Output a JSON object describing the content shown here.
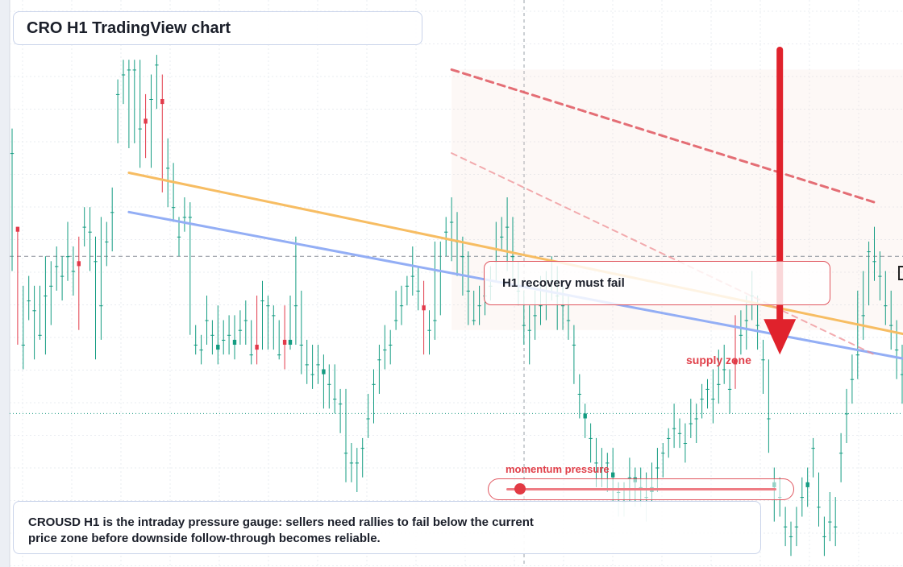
{
  "title": "CRO H1 TradingView chart",
  "callout": "H1 recovery must fail",
  "zone_label": "supply zone",
  "momentum": {
    "label": "momentum pressure",
    "level": 0.05
  },
  "caption": "CROUSD H1 is the intraday pressure gauge: sellers need rallies to fail below the current price zone before downside follow-through becomes reliable.",
  "colors": {
    "up": "#149c82",
    "down": "#e23a4a",
    "trend_orange": "#f7bd63",
    "trend_blue": "#93aef5",
    "resistance": "#e0565f",
    "arrow": "#e0222c"
  },
  "chart_data": {
    "type": "candlestick",
    "symbol": "CROUSD",
    "timeframe": "H1",
    "price_scale": "no printed axis; values are relative units (higher = higher price)",
    "ylim": [
      0,
      100
    ],
    "candles": [
      [
        79,
        79,
        84,
        55
      ],
      [
        64,
        63,
        64,
        40
      ],
      [
        40,
        40,
        52,
        35
      ],
      [
        49,
        49,
        54,
        45
      ],
      [
        47,
        47,
        52,
        37
      ],
      [
        42,
        42,
        52,
        41
      ],
      [
        50,
        50,
        58,
        38
      ],
      [
        52,
        52,
        57,
        44
      ],
      [
        56,
        56,
        60,
        51
      ],
      [
        54,
        54,
        58,
        49
      ],
      [
        58,
        58,
        65,
        53
      ],
      [
        55,
        55,
        60,
        50
      ],
      [
        57,
        56,
        62,
        43
      ],
      [
        64,
        64,
        68,
        60
      ],
      [
        63,
        63,
        68,
        55
      ],
      [
        57,
        57,
        62,
        37
      ],
      [
        48,
        48,
        66,
        41
      ],
      [
        61,
        61,
        65,
        56
      ],
      [
        67,
        67,
        72,
        59
      ],
      [
        91,
        91,
        94,
        81
      ],
      [
        95,
        95,
        98,
        89
      ],
      [
        96,
        96,
        98,
        80
      ],
      [
        96,
        96,
        98,
        81
      ],
      [
        84,
        84,
        98,
        76
      ],
      [
        86,
        85,
        91,
        78
      ],
      [
        90,
        90,
        95,
        76
      ],
      [
        97,
        97,
        99,
        88
      ],
      [
        90,
        89,
        95,
        71
      ],
      [
        76,
        76,
        82,
        68
      ],
      [
        68,
        68,
        77,
        65
      ],
      [
        62,
        62,
        66,
        58
      ],
      [
        66,
        66,
        70,
        63
      ],
      [
        66,
        66,
        69,
        42
      ],
      [
        40,
        40,
        44,
        38
      ],
      [
        39,
        39,
        42,
        36
      ],
      [
        45,
        45,
        50,
        40
      ],
      [
        42,
        42,
        45,
        38
      ],
      [
        39,
        40,
        48,
        36
      ],
      [
        41,
        41,
        45,
        38
      ],
      [
        42,
        42,
        46,
        38
      ],
      [
        40,
        41,
        46,
        37
      ],
      [
        43,
        43,
        47,
        40
      ],
      [
        45,
        45,
        49,
        40
      ],
      [
        38,
        38,
        45,
        36
      ],
      [
        40,
        39,
        50,
        36
      ],
      [
        49,
        49,
        53,
        39
      ],
      [
        48,
        48,
        50,
        39
      ],
      [
        46,
        46,
        48,
        39
      ],
      [
        38,
        38,
        45,
        37
      ],
      [
        41,
        40,
        48,
        35
      ],
      [
        40,
        41,
        50,
        39
      ],
      [
        48,
        48,
        62,
        40
      ],
      [
        40,
        40,
        51,
        34
      ],
      [
        36,
        36,
        41,
        32
      ],
      [
        34,
        34,
        40,
        31
      ],
      [
        36,
        36,
        40,
        32
      ],
      [
        34,
        35,
        38,
        27
      ],
      [
        32,
        32,
        36,
        27
      ],
      [
        29,
        29,
        36,
        26
      ],
      [
        28,
        28,
        31,
        22
      ],
      [
        18,
        18,
        31,
        12
      ],
      [
        16,
        16,
        20,
        12
      ],
      [
        16,
        16,
        19,
        10
      ],
      [
        19,
        19,
        21,
        13
      ],
      [
        25,
        25,
        30,
        21
      ],
      [
        32,
        32,
        35,
        24
      ],
      [
        37,
        37,
        40,
        30
      ],
      [
        39,
        39,
        44,
        35
      ],
      [
        40,
        40,
        43,
        36
      ],
      [
        45,
        45,
        51,
        43
      ],
      [
        48,
        48,
        52,
        44
      ],
      [
        52,
        52,
        54,
        48
      ],
      [
        54,
        54,
        60,
        50
      ],
      [
        51,
        51,
        56,
        47
      ],
      [
        48,
        47,
        53,
        38
      ],
      [
        43,
        43,
        47,
        38
      ],
      [
        45,
        45,
        61,
        41
      ],
      [
        55,
        55,
        61,
        46
      ],
      [
        63,
        63,
        66,
        58
      ],
      [
        65,
        65,
        70,
        57
      ],
      [
        61,
        61,
        67,
        54
      ],
      [
        58,
        58,
        62,
        50
      ],
      [
        51,
        51,
        59,
        44
      ],
      [
        45,
        45,
        51,
        44
      ],
      [
        48,
        48,
        52,
        44
      ],
      [
        50,
        50,
        53,
        46
      ],
      [
        52,
        52,
        56,
        49
      ],
      [
        57,
        57,
        65,
        53
      ],
      [
        62,
        62,
        66,
        59
      ],
      [
        64,
        64,
        70,
        55
      ],
      [
        58,
        58,
        66,
        53
      ],
      [
        51,
        51,
        57,
        48
      ],
      [
        44,
        44,
        51,
        40
      ],
      [
        43,
        43,
        48,
        36
      ],
      [
        46,
        46,
        51,
        41
      ],
      [
        48,
        48,
        54,
        44
      ],
      [
        51,
        51,
        55,
        45
      ],
      [
        53,
        53,
        58,
        49
      ],
      [
        50,
        50,
        56,
        43
      ],
      [
        48,
        48,
        52,
        43
      ],
      [
        45,
        45,
        50,
        41
      ],
      [
        40,
        40,
        44,
        32
      ],
      [
        30,
        30,
        34,
        25
      ],
      [
        25,
        26,
        28,
        21
      ],
      [
        21,
        21,
        24,
        16
      ],
      [
        16,
        16,
        21,
        11
      ],
      [
        15,
        15,
        19,
        11
      ],
      [
        16,
        16,
        18,
        10
      ],
      [
        13,
        14,
        19,
        8
      ],
      [
        10,
        10,
        12,
        5
      ],
      [
        8,
        8,
        12,
        5
      ],
      [
        13,
        13,
        17,
        8
      ],
      [
        12,
        13,
        15,
        7
      ],
      [
        11,
        11,
        15,
        7
      ],
      [
        9,
        9,
        14,
        4
      ],
      [
        10,
        11,
        16,
        8
      ],
      [
        15,
        15,
        19,
        10
      ],
      [
        18,
        18,
        20,
        13
      ],
      [
        21,
        21,
        23,
        17
      ],
      [
        23,
        23,
        28,
        19
      ],
      [
        22,
        22,
        25,
        19
      ],
      [
        20,
        20,
        24,
        16
      ],
      [
        24,
        24,
        29,
        21
      ],
      [
        25,
        25,
        28,
        20
      ],
      [
        29,
        29,
        32,
        25
      ],
      [
        31,
        31,
        33,
        27
      ],
      [
        29,
        29,
        35,
        24
      ],
      [
        32,
        32,
        39,
        28
      ],
      [
        35,
        35,
        40,
        32
      ],
      [
        31,
        31,
        35,
        26
      ],
      [
        37,
        36,
        46,
        31
      ],
      [
        42,
        42,
        47,
        38
      ],
      [
        45,
        45,
        50,
        39
      ],
      [
        50,
        50,
        55,
        45
      ],
      [
        44,
        44,
        50,
        39
      ],
      [
        37,
        37,
        41,
        30
      ],
      [
        25,
        25,
        37,
        18
      ],
      [
        11,
        12,
        15,
        4
      ],
      [
        9,
        9,
        13,
        5
      ],
      [
        3,
        3,
        7,
        -1
      ],
      [
        1,
        1,
        4,
        -3
      ],
      [
        3,
        3,
        7,
        -1
      ],
      [
        9,
        9,
        13,
        5
      ],
      [
        11,
        12,
        15,
        7
      ],
      [
        19,
        19,
        21,
        13
      ],
      [
        7,
        7,
        14,
        3
      ],
      [
        1,
        1,
        5,
        -3
      ],
      [
        4,
        4,
        10,
        0
      ],
      [
        3,
        3,
        9,
        -1
      ],
      [
        18,
        18,
        22,
        12
      ],
      [
        26,
        26,
        31,
        20
      ],
      [
        33,
        33,
        38,
        28
      ],
      [
        38,
        38,
        51,
        33
      ],
      [
        46,
        46,
        55,
        41
      ],
      [
        59,
        59,
        61,
        48
      ],
      [
        57,
        57,
        64,
        53
      ],
      [
        54,
        54,
        59,
        49
      ],
      [
        48,
        48,
        55,
        44
      ],
      [
        44,
        44,
        51,
        39
      ],
      [
        39,
        39,
        45,
        33
      ],
      [
        34,
        34,
        40,
        28
      ],
      [
        25,
        25,
        34,
        19
      ],
      [
        19,
        19,
        23,
        15
      ],
      [
        11,
        11,
        17,
        6
      ],
      [
        9,
        9,
        12,
        3
      ],
      [
        8,
        8,
        12,
        3
      ],
      [
        13,
        13,
        19,
        8
      ],
      [
        17,
        17,
        22,
        13
      ],
      [
        37,
        37,
        44,
        33
      ],
      [
        43,
        43,
        50,
        38
      ],
      [
        45,
        45,
        54,
        42
      ],
      [
        45,
        45,
        49,
        37
      ],
      [
        49,
        49,
        56,
        44
      ],
      [
        47,
        47,
        53,
        43
      ],
      [
        48,
        48,
        53,
        44
      ],
      [
        59,
        59,
        67,
        53
      ],
      [
        63,
        63,
        72,
        58
      ],
      [
        71,
        71,
        77,
        66
      ],
      [
        81,
        81,
        85,
        69
      ],
      [
        88,
        88,
        93,
        82
      ],
      [
        86,
        86,
        89,
        78
      ],
      [
        80,
        80,
        90,
        76
      ],
      [
        61,
        61,
        73,
        57
      ],
      [
        53,
        53,
        63,
        49
      ],
      [
        50,
        50,
        58,
        45
      ],
      [
        32,
        32,
        44,
        26
      ],
      [
        28,
        28,
        33,
        25
      ],
      [
        35,
        35,
        39,
        29
      ]
    ],
    "lines": [
      {
        "name": "",
        "style": "solid",
        "color": "orange",
        "from": [
          21,
          75
        ],
        "to": [
          161,
          42
        ]
      },
      {
        "name": "",
        "style": "solid",
        "color": "blue",
        "from": [
          21,
          67
        ],
        "to": [
          161,
          37
        ]
      },
      {
        "name": "",
        "style": "dashed",
        "color": "red",
        "from": [
          79,
          96
        ],
        "to": [
          155,
          69
        ]
      },
      {
        "name": "",
        "style": "dashed",
        "color": "light red",
        "from": [
          79,
          79
        ],
        "to": [
          155,
          38
        ]
      }
    ],
    "levels": [
      {
        "style": "dashed",
        "color": "gray",
        "value": 58
      },
      {
        "style": "dotted",
        "color": "teal",
        "value": 26
      }
    ],
    "zone": {
      "x_from": 79,
      "x_to": 161,
      "y_from": 43,
      "y_to": 96
    },
    "arrow": {
      "direction": "down",
      "x": 138,
      "from": 100,
      "to": 38
    },
    "grid": true
  }
}
